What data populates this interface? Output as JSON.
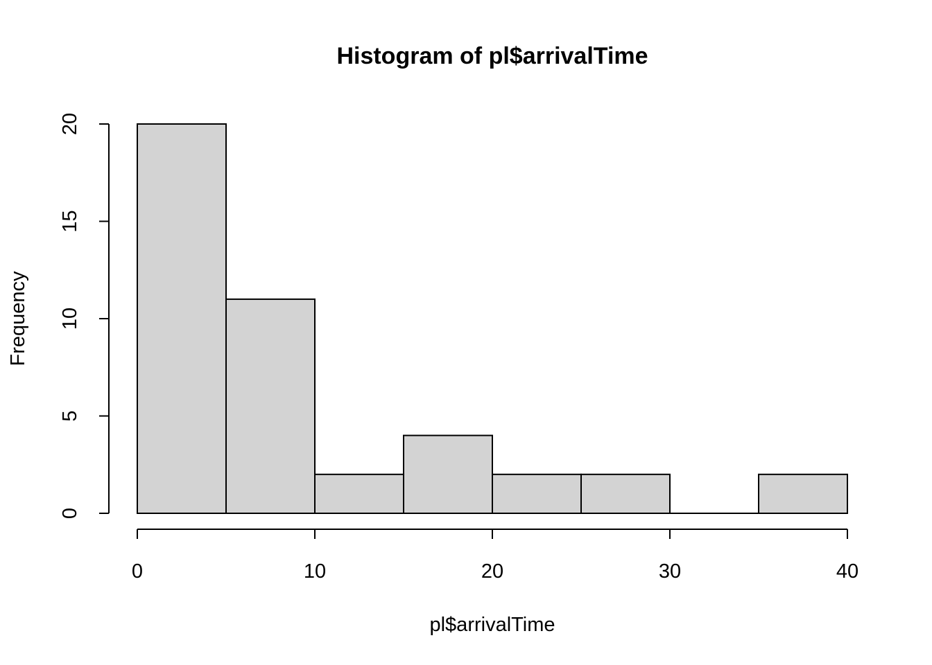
{
  "chart_data": {
    "type": "bar",
    "title": "Histogram of pl$arrivalTime",
    "xlabel": "pl$arrivalTime",
    "ylabel": "Frequency",
    "bins": [
      {
        "start": 0,
        "end": 5,
        "count": 20
      },
      {
        "start": 5,
        "end": 10,
        "count": 11
      },
      {
        "start": 10,
        "end": 15,
        "count": 2
      },
      {
        "start": 15,
        "end": 20,
        "count": 4
      },
      {
        "start": 20,
        "end": 25,
        "count": 2
      },
      {
        "start": 25,
        "end": 30,
        "count": 2
      },
      {
        "start": 30,
        "end": 35,
        "count": 0
      },
      {
        "start": 35,
        "end": 40,
        "count": 2
      }
    ],
    "xlim": [
      0,
      40
    ],
    "ylim": [
      0,
      20
    ],
    "x_ticks": [
      "0",
      "10",
      "20",
      "30",
      "40"
    ],
    "y_ticks": [
      "0",
      "5",
      "10",
      "15",
      "20"
    ],
    "bar_color": "#d3d3d3",
    "grid": false
  }
}
